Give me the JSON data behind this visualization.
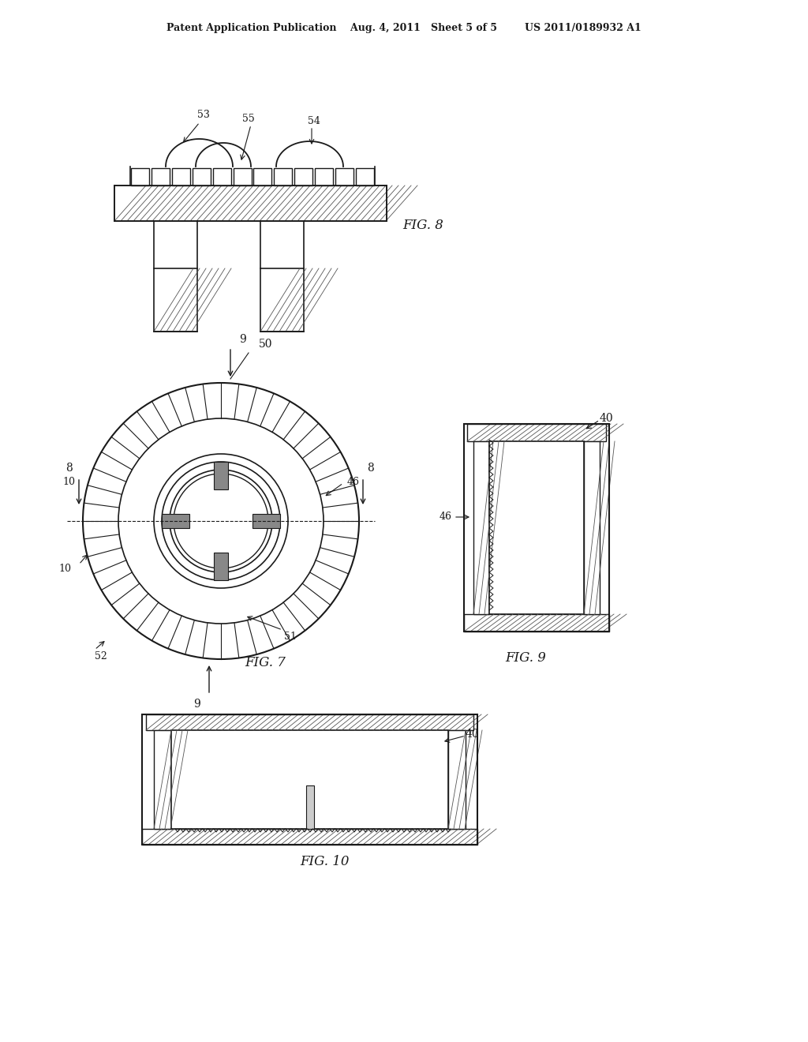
{
  "bg_color": "#ffffff",
  "line_color": "#1a1a1a",
  "hatch_color": "#333333",
  "header_text": "Patent Application Publication    Aug. 4, 2011   Sheet 5 of 5        US 2011/0189932 A1",
  "fig8_label": "FIG. 8",
  "fig7_label": "FIG. 7",
  "fig9_label": "FIG. 9",
  "fig10_label": "FIG. 10"
}
